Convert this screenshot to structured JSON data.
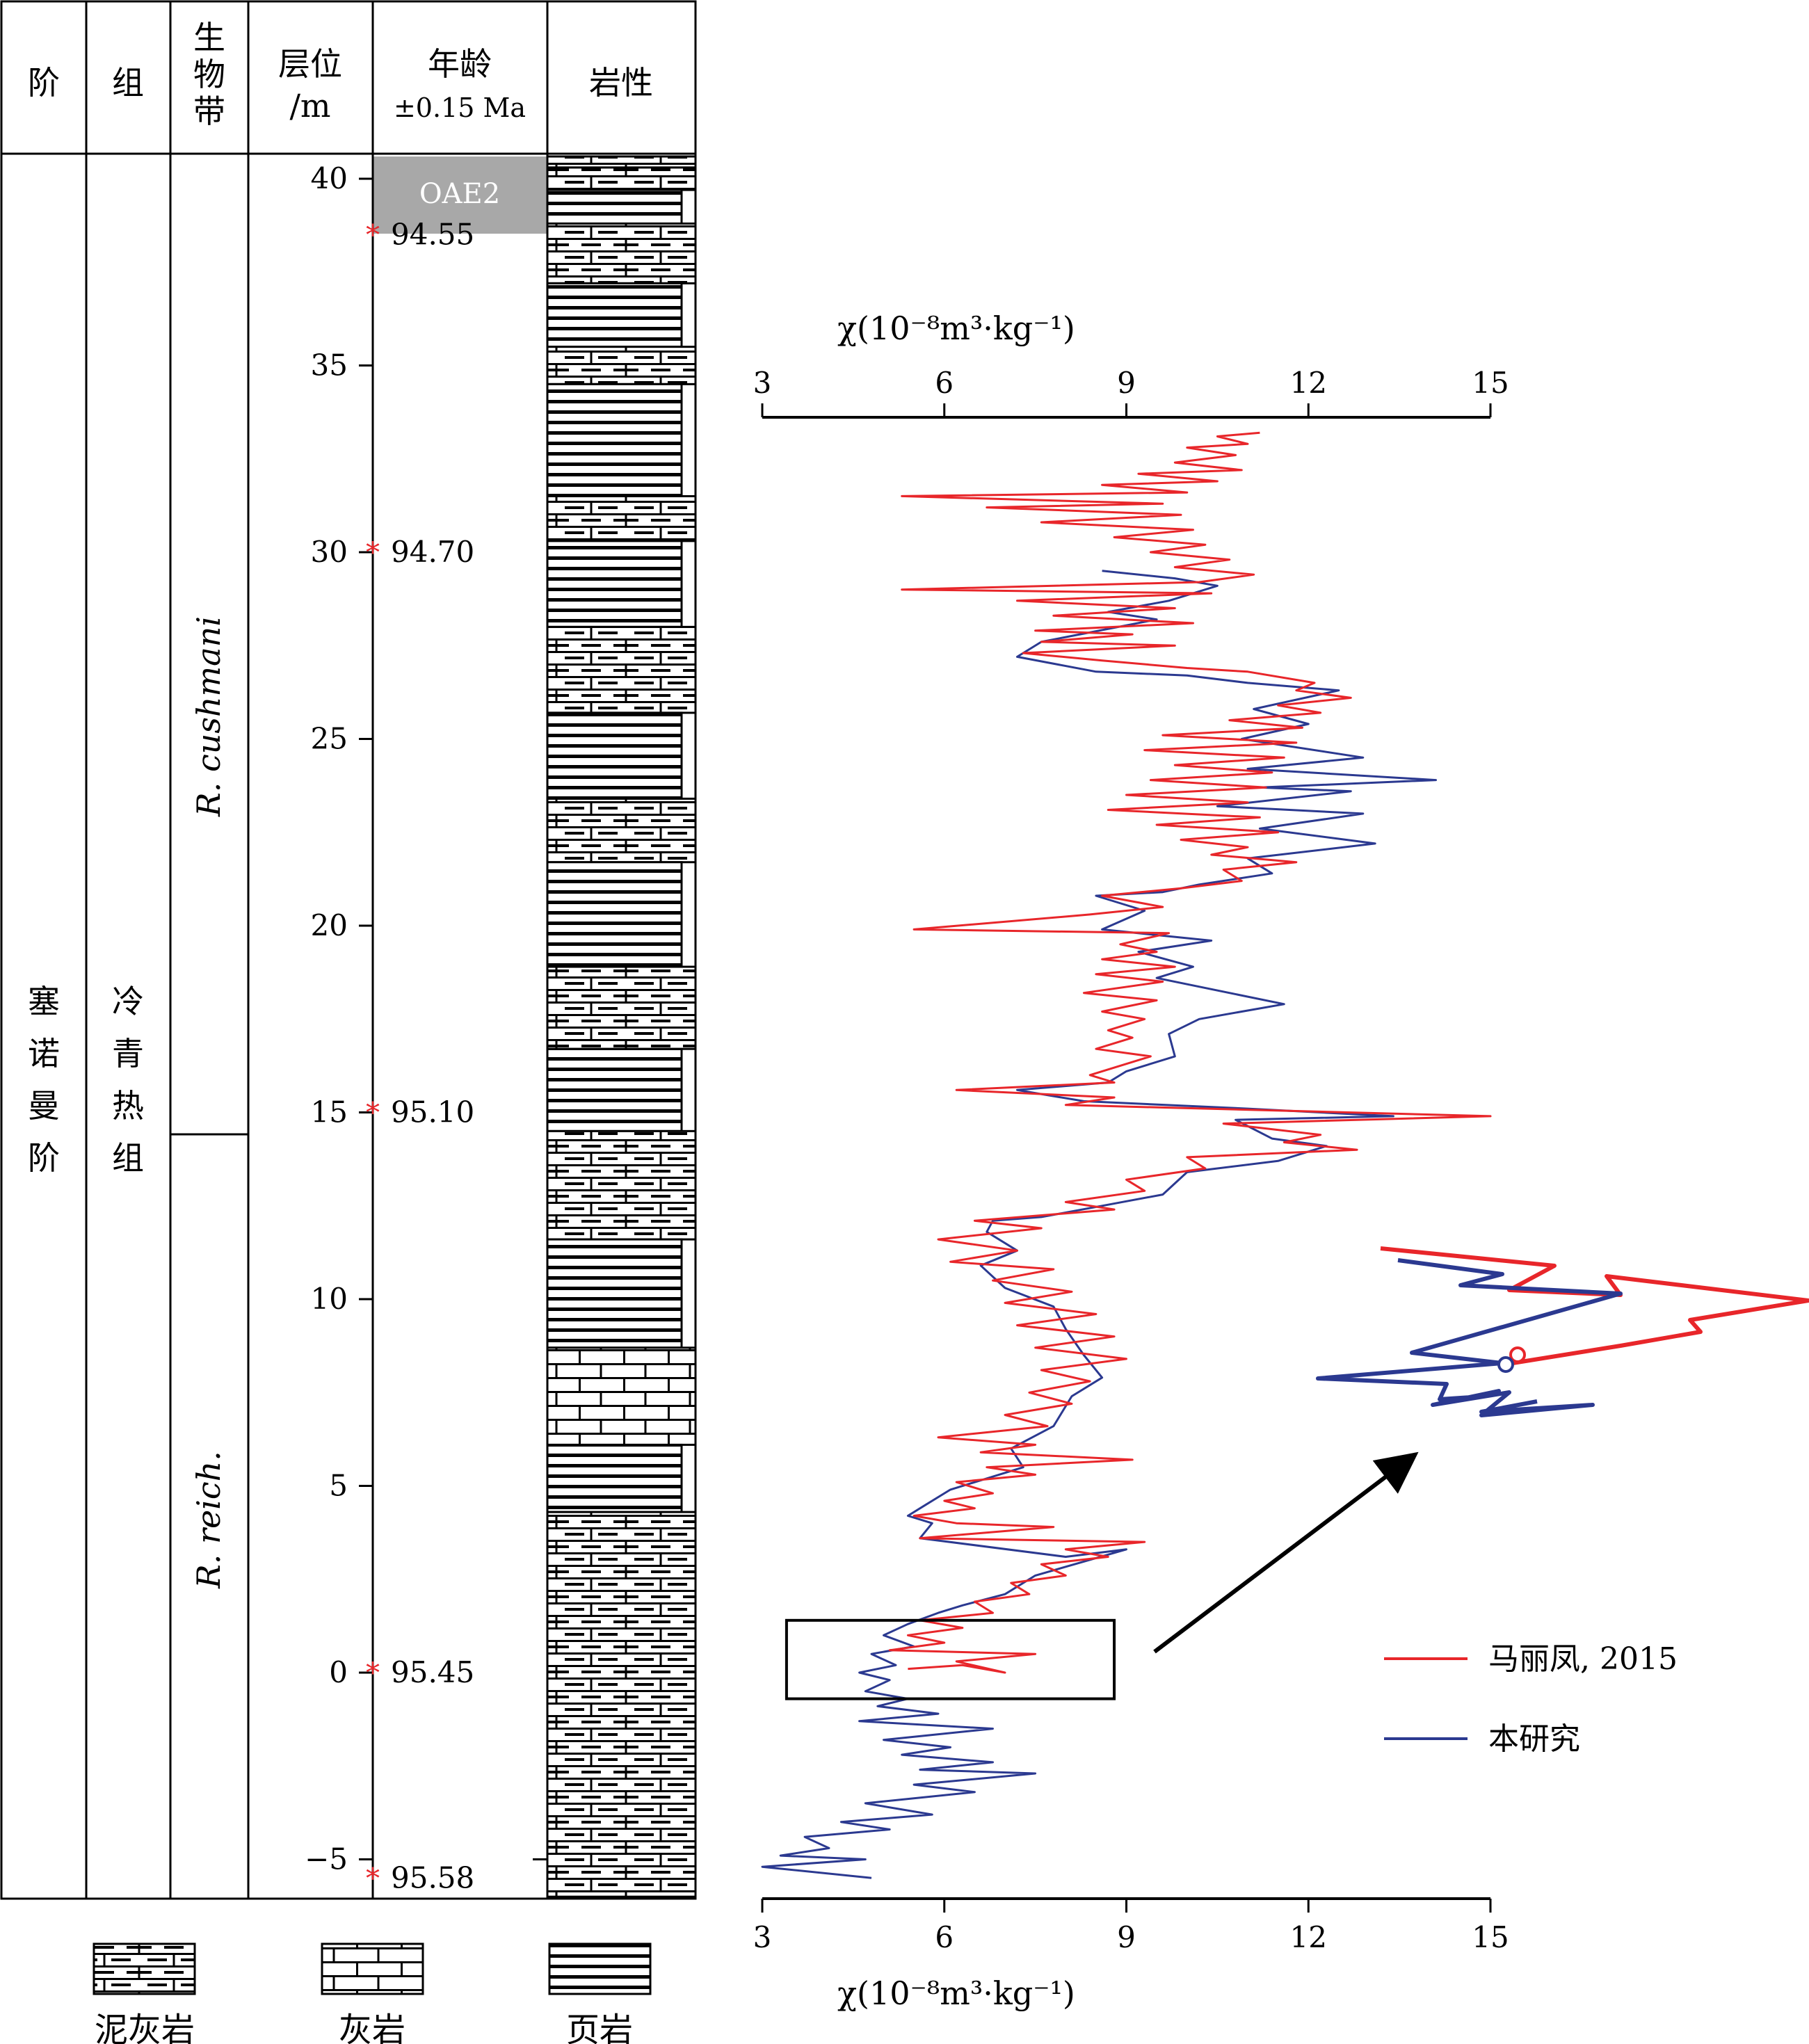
{
  "columns": {
    "stage": "阶",
    "formation": "组",
    "biozone": [
      "生",
      "物",
      "带"
    ],
    "depth": [
      "层位",
      "/m"
    ],
    "age": [
      "年龄",
      "±0.15 Ma"
    ],
    "lithology": "岩性"
  },
  "stage_name": [
    "塞",
    "诺",
    "曼",
    "阶"
  ],
  "formation_name": [
    "冷",
    "青",
    "热",
    "组"
  ],
  "biozones": [
    {
      "name": "R. cushmani",
      "top_m": 40.5,
      "bottom_m": 14.5
    },
    {
      "name": "R. reich.",
      "top_m": 14.5,
      "bottom_m": -6.0
    }
  ],
  "oae_label": "OAE2",
  "depth_ticks": [
    "40",
    "35",
    "30",
    "25",
    "20",
    "15",
    "10",
    "5",
    "0",
    "−5"
  ],
  "age_points": [
    {
      "depth_m": 38.5,
      "age": "94.55"
    },
    {
      "depth_m": 30,
      "age": "94.70"
    },
    {
      "depth_m": 15,
      "age": "95.10"
    },
    {
      "depth_m": 0,
      "age": "95.45"
    },
    {
      "depth_m": -5.5,
      "age": "95.58"
    }
  ],
  "lithology_legend": [
    {
      "key": "marlstone",
      "label": "泥灰岩"
    },
    {
      "key": "limestone",
      "label": "灰岩"
    },
    {
      "key": "shale",
      "label": "页岩"
    }
  ],
  "chart_data": {
    "type": "line",
    "xlabel": "χ(10⁻⁸m³·kg⁻¹)",
    "ylabel": "层位/m",
    "xlim": [
      3,
      15
    ],
    "xticks": [
      "3",
      "6",
      "9",
      "12",
      "15"
    ],
    "ylim": [
      -6,
      40.5
    ],
    "legend_position": "bottom-right",
    "series": [
      {
        "name": "马丽凤, 2015",
        "color": "#e8262a",
        "points": [
          [
            11.2,
            33.2
          ],
          [
            10.5,
            33.1
          ],
          [
            11.0,
            32.9
          ],
          [
            10.0,
            32.8
          ],
          [
            10.8,
            32.6
          ],
          [
            9.8,
            32.4
          ],
          [
            10.9,
            32.2
          ],
          [
            9.2,
            32.1
          ],
          [
            10.5,
            31.9
          ],
          [
            8.6,
            31.8
          ],
          [
            10.0,
            31.6
          ],
          [
            5.3,
            31.5
          ],
          [
            9.6,
            31.3
          ],
          [
            6.7,
            31.2
          ],
          [
            9.9,
            31.0
          ],
          [
            7.6,
            30.8
          ],
          [
            10.1,
            30.6
          ],
          [
            8.8,
            30.4
          ],
          [
            10.3,
            30.2
          ],
          [
            9.4,
            30.0
          ],
          [
            10.7,
            29.8
          ],
          [
            9.8,
            29.6
          ],
          [
            11.1,
            29.4
          ],
          [
            10.2,
            29.2
          ],
          [
            5.3,
            29.0
          ],
          [
            10.4,
            28.9
          ],
          [
            7.2,
            28.7
          ],
          [
            9.8,
            28.5
          ],
          [
            7.8,
            28.3
          ],
          [
            10.1,
            28.1
          ],
          [
            7.5,
            27.9
          ],
          [
            9.1,
            27.8
          ],
          [
            7.6,
            27.6
          ],
          [
            9.8,
            27.5
          ],
          [
            7.3,
            27.3
          ],
          [
            8.6,
            27.1
          ],
          [
            10.0,
            26.9
          ],
          [
            11.0,
            26.8
          ],
          [
            12.1,
            26.5
          ],
          [
            11.8,
            26.3
          ],
          [
            12.7,
            26.1
          ],
          [
            11.5,
            25.9
          ],
          [
            12.2,
            25.7
          ],
          [
            10.7,
            25.5
          ],
          [
            11.9,
            25.3
          ],
          [
            9.6,
            25.1
          ],
          [
            11.8,
            24.9
          ],
          [
            9.3,
            24.7
          ],
          [
            11.6,
            24.5
          ],
          [
            9.8,
            24.3
          ],
          [
            11.4,
            24.1
          ],
          [
            9.4,
            23.9
          ],
          [
            11.3,
            23.7
          ],
          [
            9.0,
            23.5
          ],
          [
            11.0,
            23.3
          ],
          [
            8.7,
            23.1
          ],
          [
            11.2,
            22.9
          ],
          [
            9.5,
            22.7
          ],
          [
            11.5,
            22.5
          ],
          [
            9.9,
            22.3
          ],
          [
            11.0,
            22.1
          ],
          [
            10.4,
            21.9
          ],
          [
            11.8,
            21.7
          ],
          [
            10.6,
            21.5
          ],
          [
            10.9,
            21.2
          ],
          [
            9.9,
            21.0
          ],
          [
            8.6,
            20.8
          ],
          [
            9.6,
            20.5
          ],
          [
            8.4,
            20.3
          ],
          [
            5.5,
            19.9
          ],
          [
            9.7,
            19.8
          ],
          [
            8.9,
            19.5
          ],
          [
            9.5,
            19.3
          ],
          [
            8.6,
            19.1
          ],
          [
            9.8,
            18.9
          ],
          [
            8.5,
            18.7
          ],
          [
            9.6,
            18.5
          ],
          [
            8.3,
            18.2
          ],
          [
            9.5,
            18.0
          ],
          [
            8.6,
            17.7
          ],
          [
            9.3,
            17.5
          ],
          [
            8.7,
            17.2
          ],
          [
            9.1,
            17.0
          ],
          [
            8.5,
            16.7
          ],
          [
            9.4,
            16.5
          ],
          [
            8.8,
            16.2
          ],
          [
            8.4,
            16.0
          ],
          [
            8.8,
            15.8
          ],
          [
            6.2,
            15.6
          ],
          [
            8.8,
            15.4
          ],
          [
            8.0,
            15.2
          ],
          [
            15.0,
            14.9
          ],
          [
            10.6,
            14.7
          ],
          [
            12.2,
            14.4
          ],
          [
            11.6,
            14.2
          ],
          [
            12.8,
            14.0
          ],
          [
            10.0,
            13.8
          ],
          [
            10.3,
            13.5
          ],
          [
            9.0,
            13.2
          ],
          [
            9.3,
            12.9
          ],
          [
            8.0,
            12.6
          ],
          [
            8.8,
            12.4
          ],
          [
            6.5,
            12.1
          ],
          [
            7.6,
            11.9
          ],
          [
            5.9,
            11.6
          ],
          [
            7.2,
            11.3
          ],
          [
            6.1,
            11.0
          ],
          [
            7.8,
            10.8
          ],
          [
            6.8,
            10.5
          ],
          [
            8.1,
            10.2
          ],
          [
            7.0,
            9.9
          ],
          [
            8.5,
            9.6
          ],
          [
            7.2,
            9.3
          ],
          [
            8.8,
            9.0
          ],
          [
            7.5,
            8.7
          ],
          [
            9.0,
            8.4
          ],
          [
            7.6,
            8.1
          ],
          [
            8.4,
            7.8
          ],
          [
            7.4,
            7.5
          ],
          [
            8.1,
            7.2
          ],
          [
            7.0,
            6.9
          ],
          [
            7.7,
            6.6
          ],
          [
            5.9,
            6.3
          ],
          [
            7.5,
            6.1
          ],
          [
            6.6,
            5.9
          ],
          [
            9.1,
            5.7
          ],
          [
            6.7,
            5.5
          ],
          [
            7.5,
            5.3
          ],
          [
            6.2,
            5.1
          ],
          [
            6.8,
            4.8
          ],
          [
            6.0,
            4.6
          ],
          [
            6.5,
            4.4
          ],
          [
            5.5,
            4.2
          ],
          [
            6.2,
            4.0
          ],
          [
            7.8,
            3.9
          ],
          [
            5.6,
            3.6
          ],
          [
            9.3,
            3.5
          ],
          [
            8.0,
            3.3
          ],
          [
            8.7,
            3.1
          ],
          [
            7.6,
            2.9
          ],
          [
            8.0,
            2.6
          ],
          [
            7.1,
            2.4
          ],
          [
            7.4,
            2.1
          ],
          [
            6.5,
            1.9
          ],
          [
            6.8,
            1.6
          ],
          [
            5.6,
            1.4
          ],
          [
            6.3,
            1.2
          ],
          [
            5.4,
            1.0
          ],
          [
            6.0,
            0.8
          ],
          [
            5.1,
            0.6
          ],
          [
            7.5,
            0.5
          ],
          [
            6.2,
            0.3
          ],
          [
            7.0,
            0.0
          ],
          [
            6.3,
            0.2
          ],
          [
            5.4,
            0.1
          ]
        ]
      },
      {
        "name": "本研究",
        "color": "#2b3990",
        "points": [
          [
            8.6,
            29.5
          ],
          [
            9.8,
            29.3
          ],
          [
            10.5,
            29.1
          ],
          [
            9.7,
            28.7
          ],
          [
            8.7,
            28.4
          ],
          [
            9.5,
            28.2
          ],
          [
            7.6,
            27.6
          ],
          [
            7.2,
            27.2
          ],
          [
            8.5,
            26.8
          ],
          [
            10.0,
            26.7
          ],
          [
            11.0,
            26.5
          ],
          [
            12.5,
            26.3
          ],
          [
            11.1,
            25.8
          ],
          [
            12.0,
            25.4
          ],
          [
            10.9,
            25.0
          ],
          [
            12.9,
            24.5
          ],
          [
            11.0,
            24.2
          ],
          [
            14.1,
            23.9
          ],
          [
            11.2,
            23.7
          ],
          [
            12.7,
            23.6
          ],
          [
            10.5,
            23.2
          ],
          [
            12.9,
            23.0
          ],
          [
            11.2,
            22.6
          ],
          [
            13.1,
            22.2
          ],
          [
            11.0,
            21.8
          ],
          [
            11.4,
            21.4
          ],
          [
            10.2,
            21.1
          ],
          [
            9.6,
            20.9
          ],
          [
            8.5,
            20.8
          ],
          [
            9.3,
            20.4
          ],
          [
            8.6,
            19.9
          ],
          [
            10.4,
            19.6
          ],
          [
            9.2,
            19.3
          ],
          [
            10.1,
            18.9
          ],
          [
            9.5,
            18.6
          ],
          [
            11.6,
            17.9
          ],
          [
            10.2,
            17.5
          ],
          [
            9.7,
            17.1
          ],
          [
            9.8,
            16.5
          ],
          [
            9.0,
            16.1
          ],
          [
            8.7,
            15.8
          ],
          [
            7.2,
            15.6
          ],
          [
            8.3,
            15.3
          ],
          [
            11.0,
            15.1
          ],
          [
            13.4,
            14.9
          ],
          [
            10.8,
            14.8
          ],
          [
            11.4,
            14.3
          ],
          [
            12.3,
            14.1
          ],
          [
            11.5,
            13.7
          ],
          [
            10.0,
            13.4
          ],
          [
            9.6,
            12.8
          ],
          [
            8.6,
            12.5
          ],
          [
            7.6,
            12.2
          ],
          [
            6.8,
            12.1
          ],
          [
            6.7,
            11.8
          ],
          [
            7.2,
            11.3
          ],
          [
            6.6,
            10.9
          ],
          [
            7.0,
            10.3
          ],
          [
            7.8,
            9.8
          ],
          [
            8.0,
            9.2
          ],
          [
            8.3,
            8.5
          ],
          [
            8.6,
            7.9
          ],
          [
            8.1,
            7.4
          ],
          [
            7.8,
            6.6
          ],
          [
            7.1,
            6.0
          ],
          [
            7.3,
            5.5
          ],
          [
            6.1,
            4.9
          ],
          [
            5.7,
            4.5
          ],
          [
            5.4,
            4.2
          ],
          [
            5.8,
            4.0
          ],
          [
            5.6,
            3.6
          ],
          [
            8.0,
            3.1
          ],
          [
            9.0,
            3.3
          ],
          [
            7.5,
            2.6
          ],
          [
            7.0,
            2.1
          ],
          [
            6.3,
            1.8
          ],
          [
            5.9,
            1.6
          ],
          [
            5.4,
            1.3
          ],
          [
            5.0,
            1.0
          ],
          [
            5.5,
            0.7
          ],
          [
            4.8,
            0.5
          ],
          [
            5.2,
            0.2
          ],
          [
            4.6,
            0.0
          ],
          [
            5.1,
            -0.2
          ],
          [
            4.7,
            -0.5
          ],
          [
            5.4,
            -0.7
          ],
          [
            4.9,
            -0.9
          ],
          [
            5.9,
            -1.1
          ],
          [
            4.6,
            -1.3
          ],
          [
            6.8,
            -1.5
          ],
          [
            5.0,
            -1.8
          ],
          [
            6.1,
            -2.0
          ],
          [
            5.3,
            -2.2
          ],
          [
            6.8,
            -2.4
          ],
          [
            5.6,
            -2.6
          ],
          [
            7.5,
            -2.7
          ],
          [
            5.5,
            -3.0
          ],
          [
            6.5,
            -3.2
          ],
          [
            4.7,
            -3.5
          ],
          [
            5.8,
            -3.8
          ],
          [
            4.3,
            -4.0
          ],
          [
            5.1,
            -4.2
          ],
          [
            3.7,
            -4.4
          ],
          [
            4.1,
            -4.7
          ],
          [
            3.3,
            -4.9
          ],
          [
            4.7,
            -5.0
          ],
          [
            3.0,
            -5.2
          ],
          [
            4.8,
            -5.5
          ]
        ]
      }
    ],
    "zoom_box": {
      "x_range": [
        3.4,
        8.8
      ],
      "depth_range": [
        -0.7,
        1.4
      ]
    }
  }
}
